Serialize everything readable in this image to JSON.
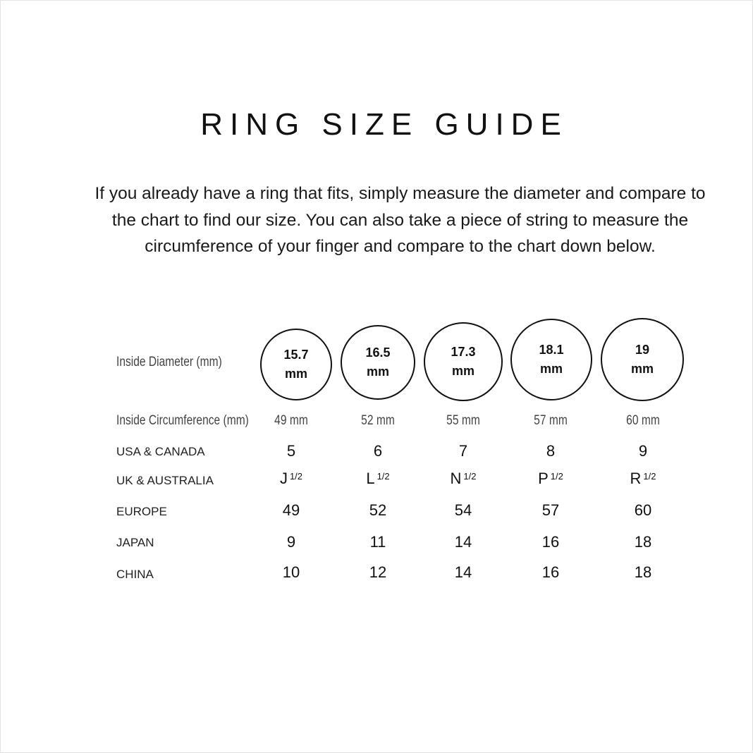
{
  "title": "RING SIZE GUIDE",
  "intro": "If you already have a ring that fits, simply measure the  diameter and compare to the chart to find our size. You can also take a piece of string to measure the circumference of your finger and compare to the chart down below.",
  "rows": {
    "diameter": "Inside Diameter (mm)",
    "circumference": "Inside Circumference (mm)",
    "usa": "USA & CANADA",
    "uk": "UK & AUSTRALIA",
    "europe": "EUROPE",
    "japan": "JAPAN",
    "china": "CHINA"
  },
  "sizes": [
    {
      "diameter": "15.7",
      "unit": "mm",
      "circumference": "49 mm",
      "usa": "5",
      "uk": "J",
      "uk_half": "1/2",
      "europe": "49",
      "japan": "9",
      "china": "10"
    },
    {
      "diameter": "16.5",
      "unit": "mm",
      "circumference": "52 mm",
      "usa": "6",
      "uk": "L",
      "uk_half": "1/2",
      "europe": "52",
      "japan": "11",
      "china": "12"
    },
    {
      "diameter": "17.3",
      "unit": "mm",
      "circumference": "55 mm",
      "usa": "7",
      "uk": "N",
      "uk_half": "1/2",
      "europe": "54",
      "japan": "14",
      "china": "14"
    },
    {
      "diameter": "18.1",
      "unit": "mm",
      "circumference": "57 mm",
      "usa": "8",
      "uk": "P",
      "uk_half": "1/2",
      "europe": "57",
      "japan": "16",
      "china": "16"
    },
    {
      "diameter": "19",
      "unit": "mm",
      "circumference": "60 mm",
      "usa": "9",
      "uk": "R",
      "uk_half": "1/2",
      "europe": "60",
      "japan": "18",
      "china": "18"
    }
  ]
}
